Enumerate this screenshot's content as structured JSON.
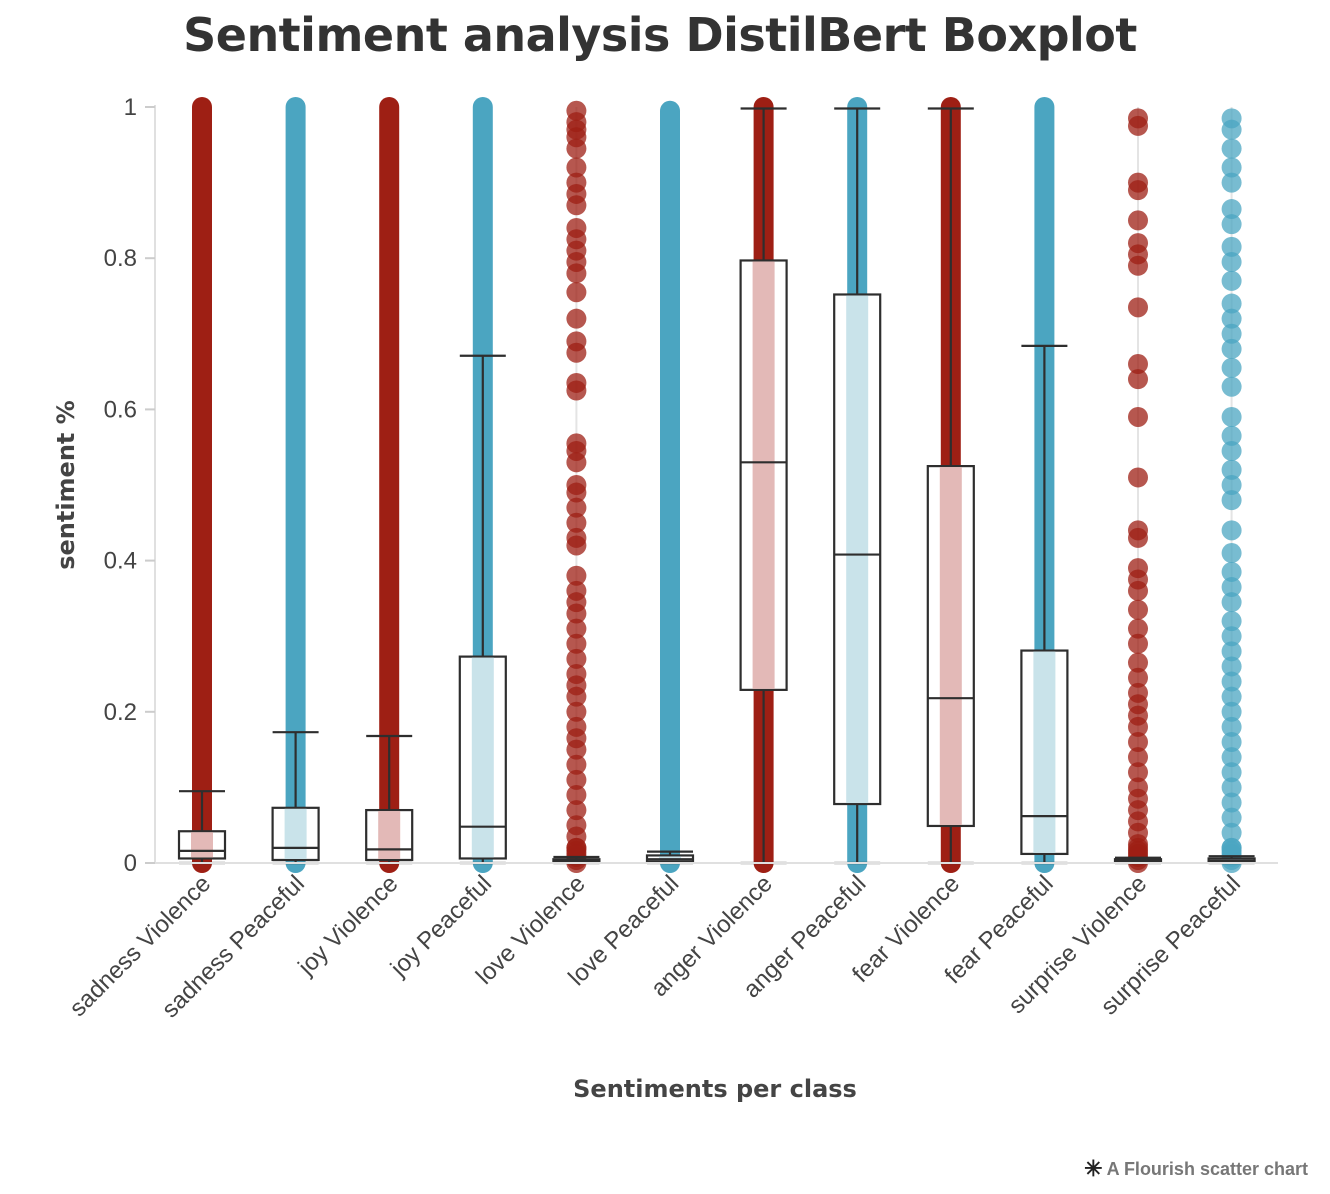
{
  "chart_data": {
    "type": "box",
    "title": "Sentiment analysis DistilBert Boxplot",
    "xlabel": "Sentiments per class",
    "ylabel": "sentiment %",
    "ylim": [
      0,
      1
    ],
    "yticks": [
      "0",
      "0.2",
      "0.4",
      "0.6",
      "0.8",
      "1"
    ],
    "grid": "vertical",
    "colors": {
      "Violence": "#9e1f14",
      "Peaceful": "#4ba5c1",
      "Violence_box": "#e3b9b7",
      "Peaceful_box": "#c9e3ea"
    },
    "categories": [
      "sadness Violence",
      "sadness Peaceful",
      "joy Violence",
      "joy Peaceful",
      "love Violence",
      "love Peaceful",
      "anger Violence",
      "anger Peaceful",
      "fear Violence",
      "fear Peaceful",
      "surprise Violence",
      "surprise Peaceful"
    ],
    "boxes": [
      {
        "class": "Violence",
        "min": 0,
        "q1": 0.006,
        "median": 0.016,
        "q3": 0.042,
        "whisker_high": 0.095,
        "points_max": 1.0
      },
      {
        "class": "Peaceful",
        "min": 0,
        "q1": 0.004,
        "median": 0.02,
        "q3": 0.073,
        "whisker_high": 0.173,
        "points_max": 1.0
      },
      {
        "class": "Violence",
        "min": 0,
        "q1": 0.004,
        "median": 0.018,
        "q3": 0.07,
        "whisker_high": 0.168,
        "points_max": 1.0
      },
      {
        "class": "Peaceful",
        "min": 0,
        "q1": 0.006,
        "median": 0.048,
        "q3": 0.273,
        "whisker_high": 0.671,
        "points_max": 1.0
      },
      {
        "class": "Violence",
        "min": 0,
        "q1": 0.001,
        "median": 0.003,
        "q3": 0.005,
        "whisker_high": 0.008,
        "points_max": 0.995
      },
      {
        "class": "Peaceful",
        "min": 0,
        "q1": 0.002,
        "median": 0.005,
        "q3": 0.01,
        "whisker_high": 0.015,
        "points_max": 0.995
      },
      {
        "class": "Violence",
        "min": 0,
        "q1": 0.229,
        "median": 0.53,
        "q3": 0.797,
        "whisker_high": 0.998,
        "points_max": 1.0
      },
      {
        "class": "Peaceful",
        "min": 0,
        "q1": 0.078,
        "median": 0.408,
        "q3": 0.752,
        "whisker_high": 0.998,
        "points_max": 1.0
      },
      {
        "class": "Violence",
        "min": 0,
        "q1": 0.049,
        "median": 0.218,
        "q3": 0.525,
        "whisker_high": 0.998,
        "points_max": 1.0
      },
      {
        "class": "Peaceful",
        "min": 0,
        "q1": 0.012,
        "median": 0.062,
        "q3": 0.281,
        "whisker_high": 0.684,
        "points_max": 1.0
      },
      {
        "class": "Violence",
        "min": 0,
        "q1": 0.001,
        "median": 0.003,
        "q3": 0.005,
        "whisker_high": 0.007,
        "points_max": 0.985
      },
      {
        "class": "Peaceful",
        "min": 0,
        "q1": 0.001,
        "median": 0.003,
        "q3": 0.006,
        "whisker_high": 0.009,
        "points_max": 0.985
      }
    ],
    "sparse_outliers": {
      "4": [
        0.995,
        0.98,
        0.97,
        0.96,
        0.945,
        0.92,
        0.9,
        0.885,
        0.87,
        0.84,
        0.825,
        0.81,
        0.795,
        0.78,
        0.755,
        0.72,
        0.69,
        0.675,
        0.635,
        0.625,
        0.555,
        0.545,
        0.53,
        0.5,
        0.49,
        0.47,
        0.45,
        0.43,
        0.42,
        0.38,
        0.36,
        0.345,
        0.33,
        0.31,
        0.29,
        0.27,
        0.25,
        0.235,
        0.22,
        0.2,
        0.18,
        0.165,
        0.15,
        0.13,
        0.11,
        0.09,
        0.07,
        0.05,
        0.035,
        0.02
      ],
      "10": [
        0.985,
        0.975,
        0.9,
        0.89,
        0.85,
        0.82,
        0.805,
        0.79,
        0.735,
        0.66,
        0.64,
        0.59,
        0.51,
        0.44,
        0.43,
        0.39,
        0.375,
        0.36,
        0.335,
        0.31,
        0.29,
        0.265,
        0.245,
        0.225,
        0.21,
        0.195,
        0.18,
        0.16,
        0.14,
        0.12,
        0.1,
        0.085,
        0.07,
        0.055,
        0.04,
        0.025
      ],
      "11": [
        0.985,
        0.97,
        0.945,
        0.92,
        0.9,
        0.865,
        0.845,
        0.815,
        0.795,
        0.77,
        0.74,
        0.72,
        0.7,
        0.68,
        0.655,
        0.63,
        0.59,
        0.565,
        0.545,
        0.52,
        0.5,
        0.48,
        0.44,
        0.41,
        0.385,
        0.365,
        0.345,
        0.32,
        0.3,
        0.28,
        0.26,
        0.24,
        0.22,
        0.2,
        0.18,
        0.16,
        0.14,
        0.12,
        0.1,
        0.08,
        0.06,
        0.04,
        0.02
      ]
    }
  },
  "credit": {
    "icon": "flourish-asterisk-icon",
    "glyph": "✳",
    "text": "A Flourish scatter chart"
  }
}
